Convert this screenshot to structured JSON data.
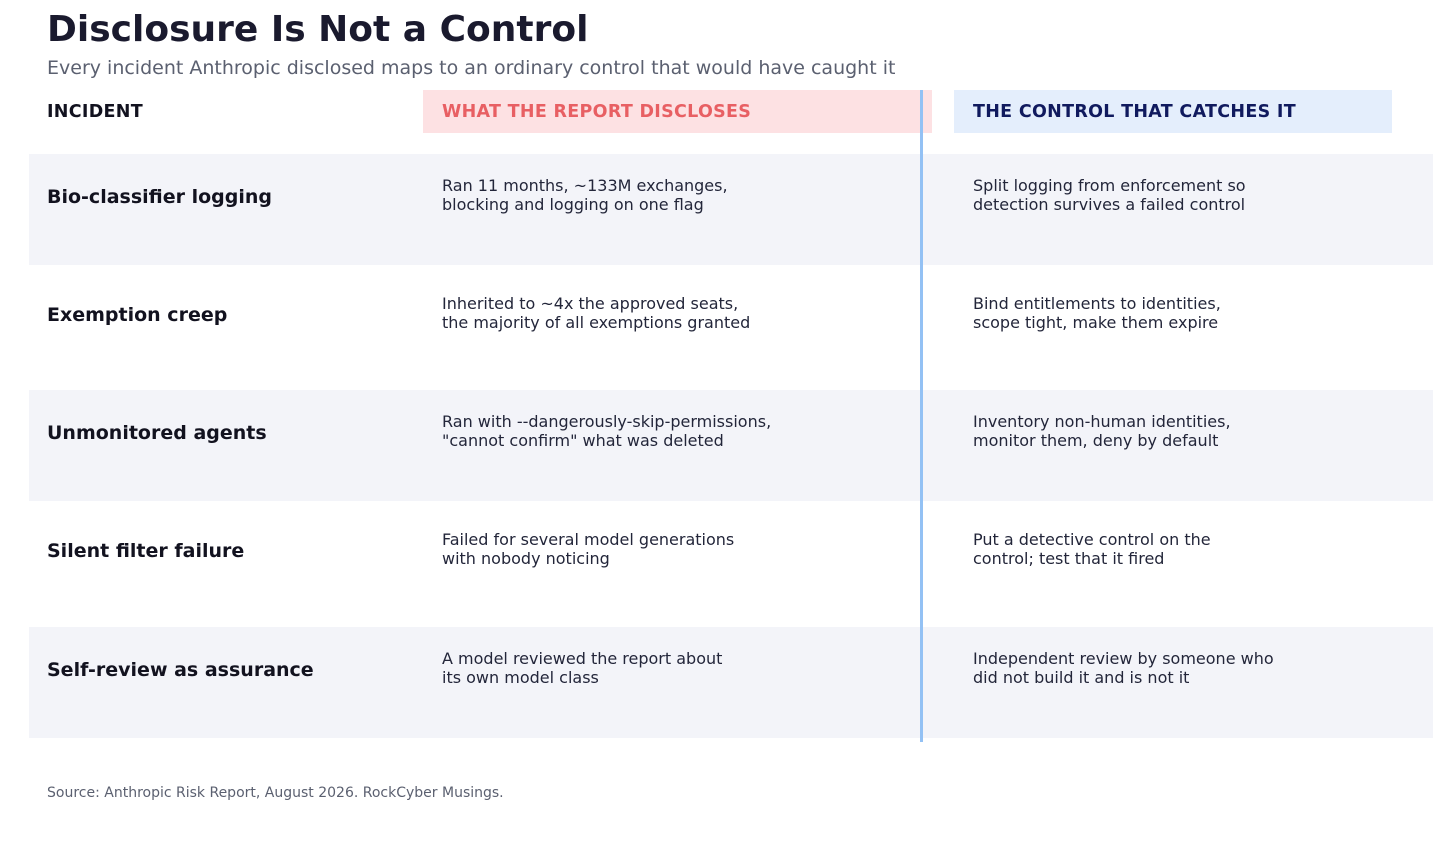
{
  "title": "Disclosure Is Not a Control",
  "subtitle": "Every incident Anthropic disclosed maps to an ordinary control that would have caught it",
  "headers": {
    "incident": "INCIDENT",
    "disclose": "WHAT THE REPORT DISCLOSES",
    "control": "THE CONTROL THAT CATCHES IT"
  },
  "rows": [
    {
      "incident": "Bio-classifier logging",
      "disclose": "Ran 11 months, ~133M exchanges,\nblocking and logging on one flag",
      "control": "Split logging from enforcement so\ndetection survives a failed control"
    },
    {
      "incident": "Exemption creep",
      "disclose": "Inherited to ~4x the approved seats,\nthe majority of all exemptions granted",
      "control": "Bind entitlements to identities,\nscope tight, make them expire"
    },
    {
      "incident": "Unmonitored agents",
      "disclose": "Ran with --dangerously-skip-permissions,\n\"cannot confirm\" what was deleted",
      "control": "Inventory non-human identities,\nmonitor them, deny by default"
    },
    {
      "incident": "Silent filter failure",
      "disclose": "Failed for several model generations\nwith nobody noticing",
      "control": "Put a detective control on the\ncontrol; test that it fired"
    },
    {
      "incident": "Self-review as assurance",
      "disclose": "A model reviewed the report about\nits own model class",
      "control": "Independent review by someone who\ndid not build it and is not it"
    }
  ],
  "source": "Source: Anthropic Risk Report, August 2026. RockCyber Musings.",
  "colors": {
    "disclose_header_bg": "#fde1e3",
    "disclose_header_text": "#e85f63",
    "control_header_bg": "#e4eefc",
    "control_header_text": "#101a5e",
    "divider": "#93c1f4",
    "row_shade": "#f3f4f9"
  }
}
